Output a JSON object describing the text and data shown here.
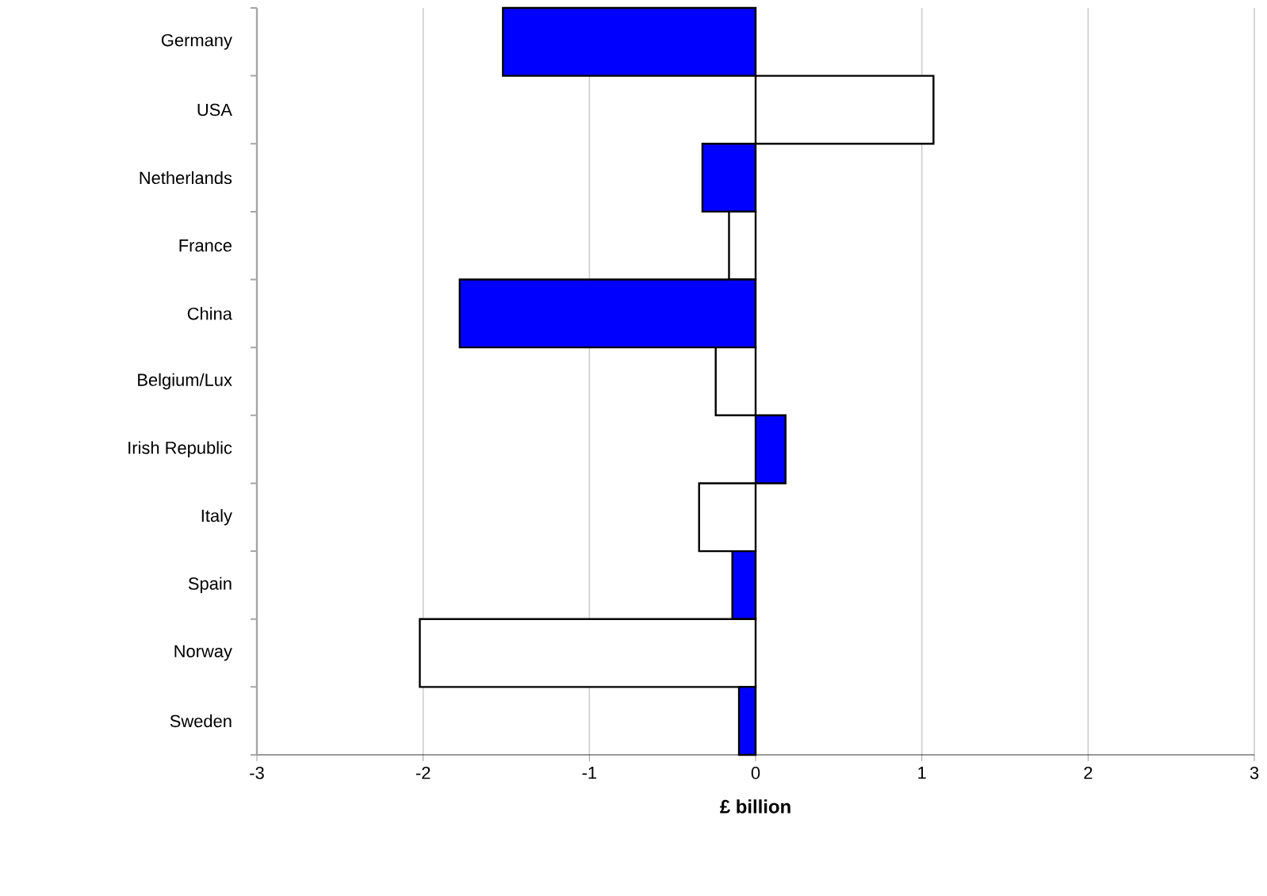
{
  "chart_data": {
    "type": "bar",
    "orientation": "horizontal",
    "categories": [
      "Germany",
      "USA",
      "Netherlands",
      "France",
      "China",
      "Belgium/Lux",
      "Irish Republic",
      "Italy",
      "Spain",
      "Norway",
      "Sweden"
    ],
    "values": [
      -1.52,
      1.07,
      -0.32,
      -0.16,
      -1.78,
      -0.24,
      0.18,
      -0.34,
      -0.14,
      -2.02,
      -0.1
    ],
    "colors": [
      "#0000ff",
      "#ffffff",
      "#0000ff",
      "#ffffff",
      "#0000ff",
      "#ffffff",
      "#0000ff",
      "#ffffff",
      "#0000ff",
      "#ffffff",
      "#0000ff"
    ],
    "xlabel": "£ billion",
    "xlim": [
      -3,
      3
    ],
    "xticks": [
      -3,
      -2,
      -1,
      0,
      1,
      2,
      3
    ],
    "grid": "x"
  }
}
